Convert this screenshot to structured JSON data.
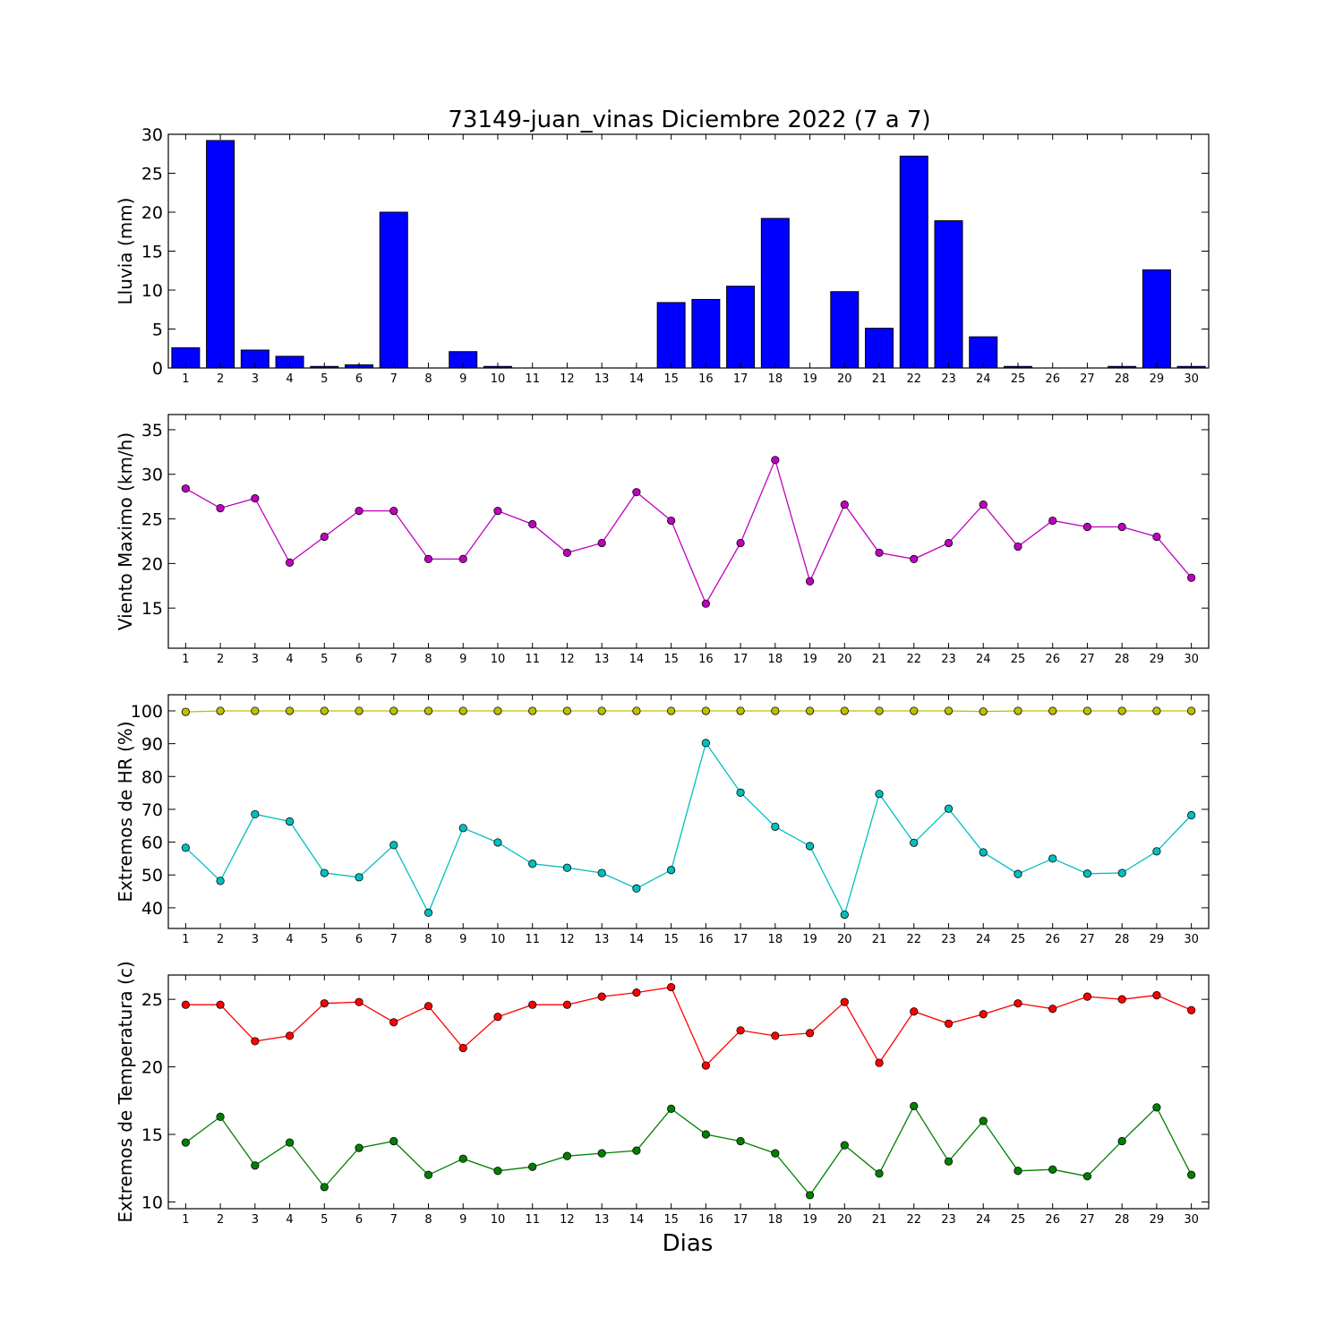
{
  "title": "73149-juan_vinas Diciembre 2022  (7 a 7)",
  "xlabel": "Dias",
  "chart_data": [
    {
      "type": "bar",
      "ylabel": "Lluvia (mm)",
      "ylim": [
        0,
        30
      ],
      "yticks": [
        0,
        5,
        10,
        15,
        20,
        25,
        30
      ],
      "x": [
        1,
        2,
        3,
        4,
        5,
        6,
        7,
        8,
        9,
        10,
        11,
        12,
        13,
        14,
        15,
        16,
        17,
        18,
        19,
        20,
        21,
        22,
        23,
        24,
        25,
        26,
        27,
        28,
        29,
        30
      ],
      "series": [
        {
          "color": "#0000ff",
          "values": [
            2.6,
            29.2,
            2.3,
            1.5,
            0.2,
            0.4,
            20.0,
            0,
            2.1,
            0.2,
            0,
            0,
            0,
            0,
            8.4,
            8.8,
            10.5,
            19.2,
            0,
            9.8,
            5.1,
            27.2,
            18.9,
            4.0,
            0.2,
            0,
            0,
            0.2,
            12.6,
            0.2
          ]
        }
      ],
      "grid": false
    },
    {
      "type": "line",
      "ylabel": "Viento Maximo (km/h)",
      "ylim": [
        10.5,
        36.7
      ],
      "yticks": [
        15,
        20,
        25,
        30,
        35
      ],
      "x": [
        1,
        2,
        3,
        4,
        5,
        6,
        7,
        8,
        9,
        10,
        11,
        12,
        13,
        14,
        15,
        16,
        17,
        18,
        19,
        20,
        21,
        22,
        23,
        24,
        25,
        26,
        27,
        28,
        29,
        30
      ],
      "series": [
        {
          "color": "#bf00bf",
          "values": [
            28.4,
            26.2,
            27.3,
            20.1,
            23.0,
            25.9,
            25.9,
            20.5,
            20.5,
            25.9,
            24.4,
            21.2,
            22.3,
            28.0,
            24.8,
            15.5,
            22.3,
            31.6,
            18.0,
            26.6,
            21.2,
            20.5,
            22.3,
            26.6,
            21.9,
            24.8,
            24.1,
            24.1,
            23.0,
            18.4
          ]
        }
      ],
      "grid": false
    },
    {
      "type": "line",
      "ylabel": "Extremos de HR (%)",
      "ylim": [
        33.7,
        104.9
      ],
      "yticks": [
        40,
        50,
        60,
        70,
        80,
        90,
        100
      ],
      "x": [
        1,
        2,
        3,
        4,
        5,
        6,
        7,
        8,
        9,
        10,
        11,
        12,
        13,
        14,
        15,
        16,
        17,
        18,
        19,
        20,
        21,
        22,
        23,
        24,
        25,
        26,
        27,
        28,
        29,
        30
      ],
      "series": [
        {
          "color": "#bfbf00",
          "values": [
            99.7,
            100,
            100,
            100,
            100,
            100,
            100,
            100,
            100,
            100,
            100,
            100,
            100,
            100,
            100,
            100,
            100,
            100,
            100,
            100,
            100,
            100,
            100,
            99.8,
            100,
            100,
            100,
            100,
            100,
            100
          ]
        },
        {
          "color": "#00bfbf",
          "values": [
            58.3,
            48.2,
            68.5,
            66.3,
            50.6,
            49.3,
            59.1,
            38.5,
            64.3,
            59.9,
            53.4,
            52.2,
            50.6,
            45.9,
            51.5,
            90.2,
            75.1,
            64.7,
            58.8,
            37.9,
            74.7,
            59.8,
            70.2,
            56.9,
            50.3,
            55.0,
            50.4,
            50.6,
            57.2,
            68.2
          ]
        }
      ],
      "grid": false
    },
    {
      "type": "line",
      "ylabel": "Extremos de Temperatura (c)",
      "ylim": [
        9.5,
        26.8
      ],
      "yticks": [
        10,
        15,
        20,
        25
      ],
      "x": [
        1,
        2,
        3,
        4,
        5,
        6,
        7,
        8,
        9,
        10,
        11,
        12,
        13,
        14,
        15,
        16,
        17,
        18,
        19,
        20,
        21,
        22,
        23,
        24,
        25,
        26,
        27,
        28,
        29,
        30
      ],
      "series": [
        {
          "color": "#ff0000",
          "values": [
            24.6,
            24.6,
            21.9,
            22.3,
            24.7,
            24.8,
            23.3,
            24.5,
            21.4,
            23.7,
            24.6,
            24.6,
            25.2,
            25.5,
            25.9,
            20.1,
            22.7,
            22.3,
            22.5,
            24.8,
            20.3,
            24.1,
            23.2,
            23.9,
            24.7,
            24.3,
            25.2,
            25.0,
            25.3,
            24.2
          ]
        },
        {
          "color": "#008000",
          "values": [
            14.4,
            16.3,
            12.7,
            14.4,
            11.1,
            14.0,
            14.5,
            12.0,
            13.2,
            12.3,
            12.6,
            13.4,
            13.6,
            13.8,
            16.9,
            15.0,
            14.5,
            13.6,
            10.5,
            14.2,
            12.1,
            17.1,
            13.0,
            16.0,
            12.3,
            12.4,
            11.9,
            14.5,
            17.0,
            12.0
          ]
        }
      ],
      "grid": false
    }
  ]
}
